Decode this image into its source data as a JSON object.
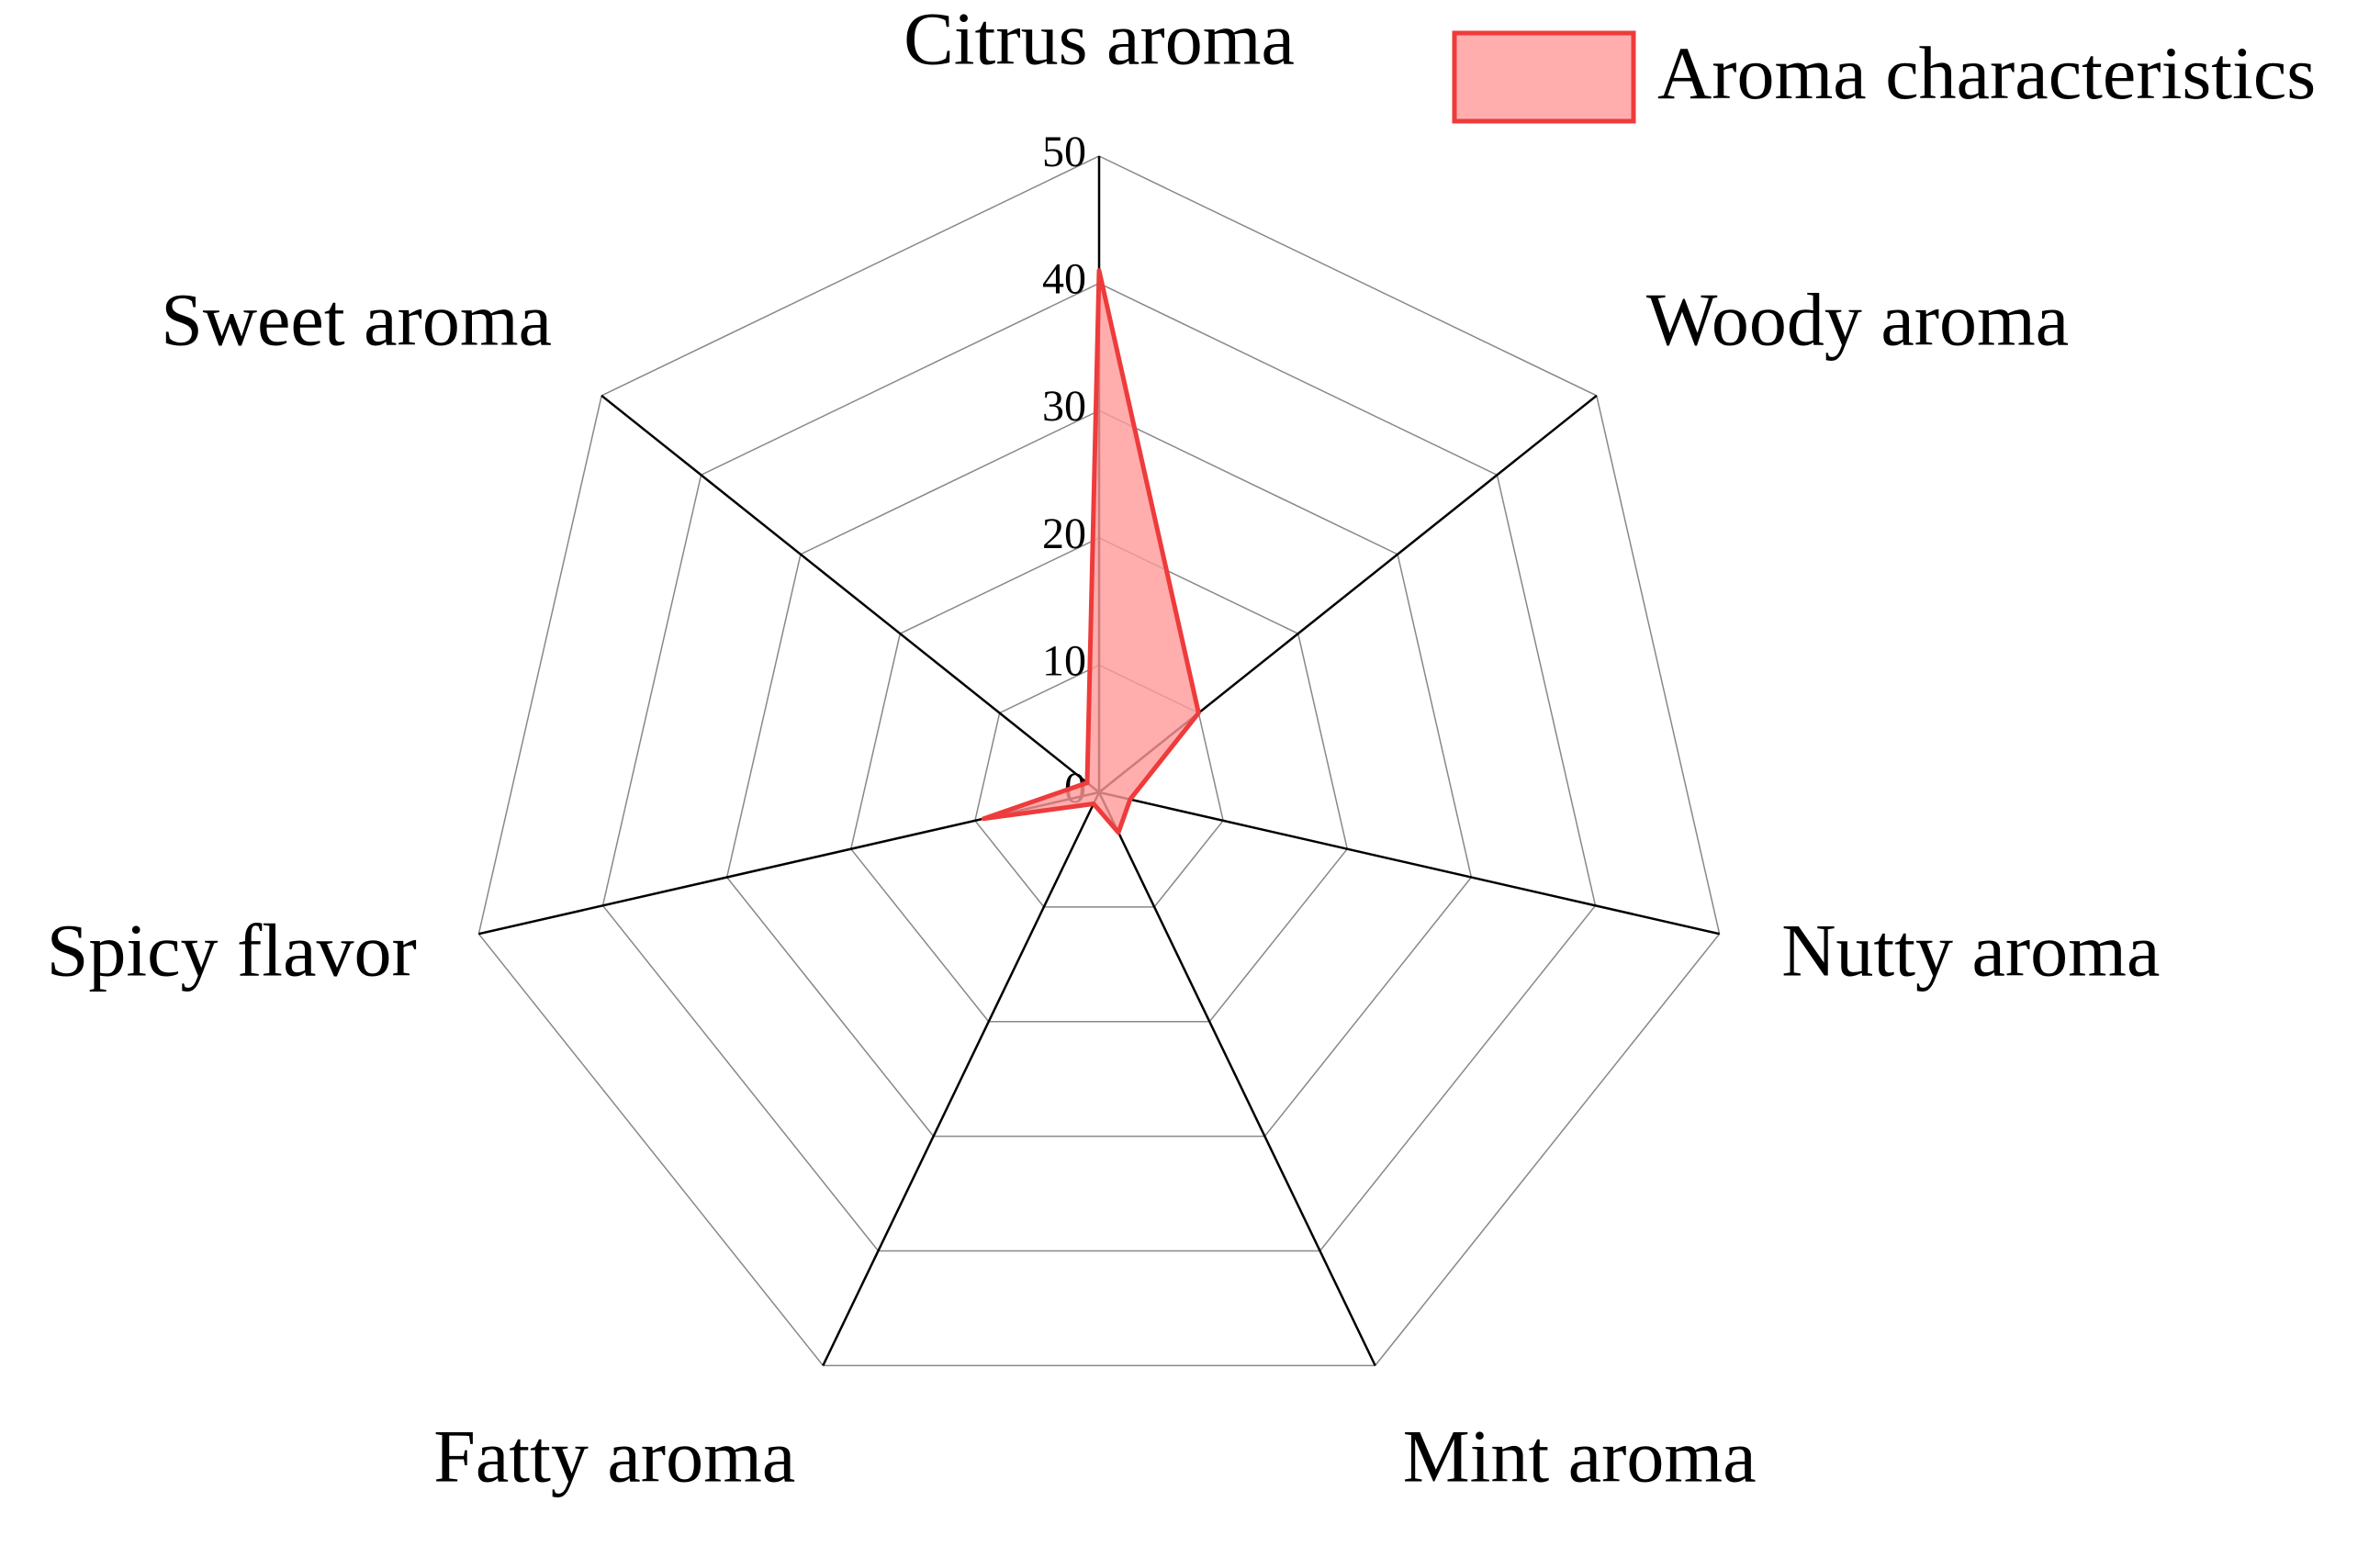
{
  "chart_data": {
    "type": "radar",
    "categories": [
      "Citrus aroma",
      "Woody aroma",
      "Nutty aroma",
      "Mint aroma",
      "Fatty aroma",
      "Spicy flavor",
      "Sweet aroma"
    ],
    "series": [
      {
        "name": "Aroma characteristics",
        "color": "#ee3b3b",
        "values": [
          41,
          10,
          2.5,
          3.5,
          1,
          9.3,
          1.2
        ]
      }
    ],
    "rlim": [
      0,
      50
    ],
    "rticks": [
      0,
      10,
      20,
      30,
      40,
      50
    ],
    "grid": true,
    "legend": "upper right"
  }
}
